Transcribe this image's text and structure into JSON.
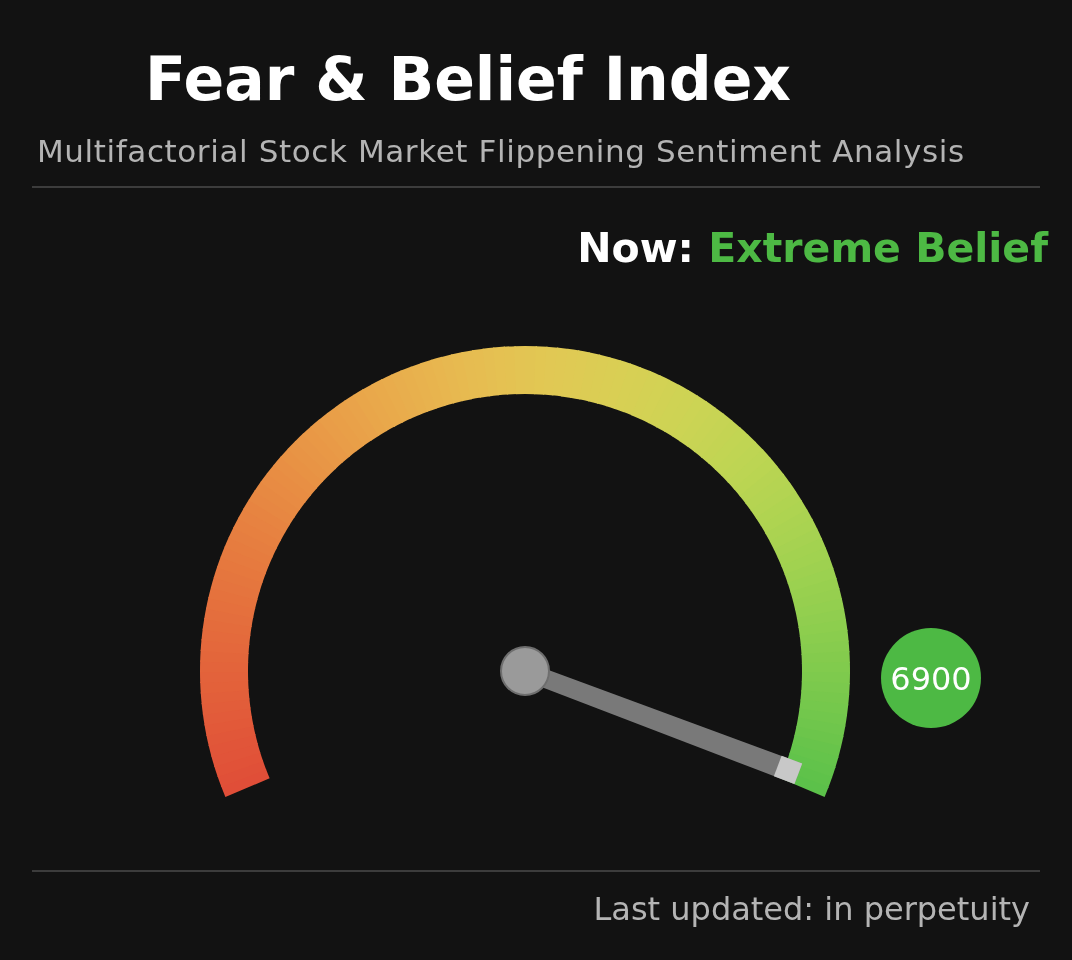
{
  "chart_data": {
    "type": "other",
    "title": "Fear & Belief Index",
    "subtitle": "Multifactorial Stock Market Flippening Sentiment Analysis",
    "annotations": [
      "Now: Extreme Belief",
      "Last updated: in perpetuity"
    ],
    "values": [
      6900
    ],
    "color": "#4db944",
    "data_labels": true
  }
}
